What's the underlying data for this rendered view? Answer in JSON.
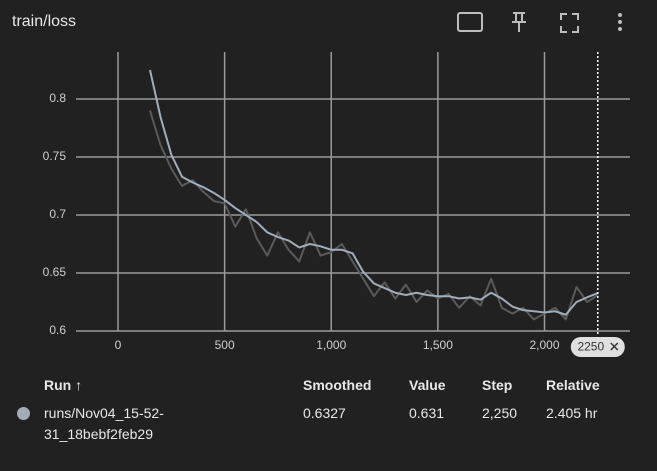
{
  "chart_data": {
    "type": "line",
    "title": "train/loss",
    "x": [
      150,
      200,
      250,
      300,
      350,
      400,
      450,
      500,
      550,
      600,
      650,
      700,
      750,
      800,
      850,
      900,
      950,
      1000,
      1050,
      1100,
      1150,
      1200,
      1250,
      1300,
      1350,
      1400,
      1450,
      1500,
      1550,
      1600,
      1650,
      1700,
      1750,
      1800,
      1850,
      1900,
      1950,
      2000,
      2050,
      2100,
      2150,
      2200,
      2250
    ],
    "series": [
      {
        "color": "#5a5a5a",
        "values": [
          0.79,
          0.76,
          0.74,
          0.725,
          0.73,
          0.72,
          0.712,
          0.71,
          0.69,
          0.705,
          0.68,
          0.665,
          0.685,
          0.67,
          0.66,
          0.685,
          0.665,
          0.668,
          0.675,
          0.66,
          0.645,
          0.63,
          0.642,
          0.628,
          0.64,
          0.625,
          0.635,
          0.628,
          0.632,
          0.62,
          0.63,
          0.622,
          0.645,
          0.62,
          0.615,
          0.62,
          0.61,
          0.615,
          0.62,
          0.61,
          0.638,
          0.625,
          0.631
        ]
      },
      {
        "color": "#a3acb9",
        "values": [
          0.825,
          0.784,
          0.752,
          0.733,
          0.728,
          0.724,
          0.719,
          0.713,
          0.706,
          0.7,
          0.694,
          0.685,
          0.681,
          0.678,
          0.672,
          0.675,
          0.673,
          0.67,
          0.67,
          0.667,
          0.651,
          0.641,
          0.637,
          0.633,
          0.631,
          0.633,
          0.631,
          0.63,
          0.63,
          0.628,
          0.629,
          0.627,
          0.633,
          0.628,
          0.621,
          0.618,
          0.617,
          0.616,
          0.617,
          0.614,
          0.625,
          0.629,
          0.6327
        ]
      }
    ],
    "xlim": [
      -197,
      2401
    ],
    "xticks": [
      0,
      500,
      {
        "value": 1000,
        "label": "1,000"
      },
      {
        "value": 1500,
        "label": "1,500"
      },
      {
        "value": 2000,
        "label": "2,000"
      }
    ],
    "ylim": [
      0.6,
      0.8405
    ],
    "yticks": [
      0.6,
      0.65,
      0.7,
      0.75,
      0.8
    ],
    "grid": true,
    "cursor_step": 2250
  },
  "table": {
    "headers": [
      "Run ↑",
      "Smoothed",
      "Value",
      "Step",
      "Relative"
    ],
    "rows": [
      [
        "runs/Nov04_15-52-31_18bebf2feb29",
        "0.6327",
        "0.631",
        "2,250",
        "2.405 hr"
      ]
    ]
  }
}
